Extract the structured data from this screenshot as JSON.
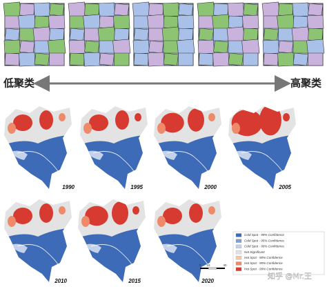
{
  "axis_labels": {
    "low": "低聚类",
    "high": "高聚类"
  },
  "maps": [
    "1990",
    "1995",
    "2000",
    "2005",
    "2010",
    "2015",
    "2020"
  ],
  "legend": [
    "Cold Spot - 99% Confidence",
    "Cold Spot - 95% Confidence",
    "Cold Spot - 90% Confidence",
    "Not Significant",
    "Hot Spot - 90% Confidence",
    "Hot Spot - 95% Confidence",
    "Hot Spot - 99% Confidence"
  ],
  "scale_bar": [
    "0",
    "15",
    "30"
  ],
  "watermark": "知乎 @Mr.王"
}
